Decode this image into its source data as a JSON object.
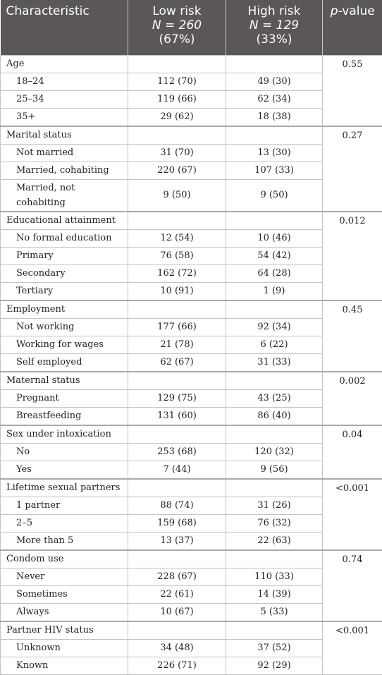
{
  "header": {
    "characteristic": "Characteristic",
    "low_risk": {
      "label": "Low risk",
      "n": "N = 260",
      "pct": "(67%)"
    },
    "high_risk": {
      "label": "High risk",
      "n": "N = 129",
      "pct": "(33%)"
    },
    "pvalue": {
      "p": "p",
      "rest": "-value"
    }
  },
  "sections": [
    {
      "title": "Age",
      "p": "0.55",
      "rows": [
        {
          "label": "18–24",
          "low": "112 (70)",
          "high": "49 (30)"
        },
        {
          "label": "25–34",
          "low": "119 (66)",
          "high": "62 (34)"
        },
        {
          "label": "35+",
          "low": "29 (62)",
          "high": "18 (38)"
        }
      ]
    },
    {
      "title": "Marital status",
      "p": "0.27",
      "rows": [
        {
          "label": "Not married",
          "low": "31 (70)",
          "high": "13 (30)"
        },
        {
          "label": "Married, cohabiting",
          "low": "220 (67)",
          "high": "107 (33)"
        },
        {
          "label": "Married, not cohabiting",
          "low": "9 (50)",
          "high": "9 (50)",
          "tall": true
        }
      ]
    },
    {
      "title": "Educational attainment",
      "p": "0.012",
      "rows": [
        {
          "label": "No formal education",
          "low": "12 (54)",
          "high": "10 (46)"
        },
        {
          "label": "Primary",
          "low": "76 (58)",
          "high": "54 (42)"
        },
        {
          "label": "Secondary",
          "low": "162 (72)",
          "high": "64 (28)"
        },
        {
          "label": "Tertiary",
          "low": "10 (91)",
          "high": "1 (9)"
        }
      ]
    },
    {
      "title": "Employment",
      "p": "0.45",
      "rows": [
        {
          "label": "Not working",
          "low": "177 (66)",
          "high": "92 (34)"
        },
        {
          "label": "Working for wages",
          "low": "21 (78)",
          "high": "6 (22)"
        },
        {
          "label": "Self employed",
          "low": "62 (67)",
          "high": "31 (33)"
        }
      ]
    },
    {
      "title": "Maternal status",
      "p": "0.002",
      "rows": [
        {
          "label": "Pregnant",
          "low": "129 (75)",
          "high": "43 (25)"
        },
        {
          "label": "Breastfeeding",
          "low": "131 (60)",
          "high": "86 (40)"
        }
      ]
    },
    {
      "title": "Sex under intoxication",
      "p": "0.04",
      "rows": [
        {
          "label": "No",
          "low": "253 (68)",
          "high": "120 (32)"
        },
        {
          "label": "Yes",
          "low": "7 (44)",
          "high": "9 (56)"
        }
      ]
    },
    {
      "title": "Lifetime sexual partners",
      "p": "<0.001",
      "rows": [
        {
          "label": "1 partner",
          "low": "88 (74)",
          "high": "31 (26)"
        },
        {
          "label": "2–5",
          "low": "159 (68)",
          "high": "76 (32)"
        },
        {
          "label": "More than 5",
          "low": "13 (37)",
          "high": "22 (63)"
        }
      ]
    },
    {
      "title": "Condom use",
      "p": "0.74",
      "rows": [
        {
          "label": "Never",
          "low": "228 (67)",
          "high": "110 (33)"
        },
        {
          "label": "Sometimes",
          "low": "22 (61)",
          "high": "14 (39)"
        },
        {
          "label": "Always",
          "low": "10 (67)",
          "high": "5 (33)"
        }
      ]
    },
    {
      "title": "Partner HIV status",
      "p": "<0.001",
      "rows": [
        {
          "label": "Unknown",
          "low": "34 (48)",
          "high": "37 (52)"
        },
        {
          "label": "Known",
          "low": "226 (71)",
          "high": "92 (29)"
        }
      ]
    }
  ]
}
